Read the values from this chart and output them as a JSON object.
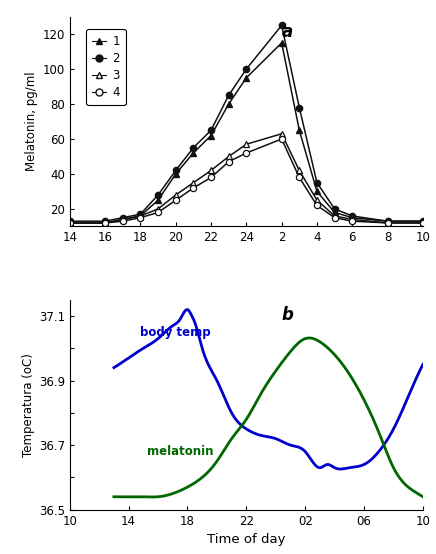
{
  "panel_a": {
    "title": "a",
    "ylabel": "Melatonin, pg/ml",
    "ylim": [
      10,
      130
    ],
    "yticks": [
      20,
      40,
      60,
      80,
      100,
      120
    ],
    "xtick_vals": [
      14,
      16,
      18,
      20,
      22,
      24,
      26,
      28,
      30,
      32,
      34
    ],
    "xticklabels": [
      "14",
      "16",
      "18",
      "20",
      "22",
      "24",
      "2",
      "4",
      "6",
      "8",
      "10"
    ],
    "series": {
      "s1": {
        "label": "1",
        "marker": "^",
        "filled": true,
        "color": "#111111",
        "x": [
          14,
          16,
          17,
          18,
          19,
          20,
          21,
          22,
          23,
          24,
          26,
          27,
          28,
          29,
          30,
          32,
          34
        ],
        "y": [
          12,
          12,
          14,
          16,
          25,
          40,
          52,
          62,
          80,
          95,
          115,
          65,
          30,
          18,
          15,
          13,
          13
        ]
      },
      "s2": {
        "label": "2",
        "marker": "o",
        "filled": true,
        "color": "#111111",
        "x": [
          14,
          16,
          17,
          18,
          19,
          20,
          21,
          22,
          23,
          24,
          26,
          27,
          28,
          29,
          30,
          32,
          34
        ],
        "y": [
          13,
          13,
          15,
          17,
          28,
          42,
          55,
          65,
          85,
          100,
          125,
          78,
          35,
          20,
          16,
          13,
          13
        ]
      },
      "s3": {
        "label": "3",
        "marker": "^",
        "filled": false,
        "color": "#111111",
        "x": [
          14,
          16,
          17,
          18,
          19,
          20,
          21,
          22,
          23,
          24,
          26,
          27,
          28,
          29,
          30,
          32,
          34
        ],
        "y": [
          12,
          12,
          14,
          16,
          20,
          28,
          35,
          42,
          50,
          57,
          63,
          42,
          25,
          16,
          14,
          12,
          12
        ]
      },
      "s4": {
        "label": "4",
        "marker": "o",
        "filled": false,
        "color": "#111111",
        "x": [
          14,
          16,
          17,
          18,
          19,
          20,
          21,
          22,
          23,
          24,
          26,
          27,
          28,
          29,
          30,
          32,
          34
        ],
        "y": [
          12,
          12,
          13,
          15,
          18,
          25,
          32,
          38,
          47,
          52,
          60,
          38,
          22,
          15,
          13,
          12,
          12
        ]
      }
    }
  },
  "panel_b": {
    "title": "b",
    "ylabel": "Temperatura (oC)",
    "xlabel": "Time of day",
    "ylim": [
      36.5,
      37.15
    ],
    "yticks": [
      36.5,
      36.6,
      36.7,
      36.8,
      36.9,
      37.0,
      37.1
    ],
    "yticklabels": [
      "36.5",
      "",
      "36.7",
      "",
      "36.9",
      "",
      "37.1"
    ],
    "xtick_vals": [
      10,
      14,
      18,
      22,
      26,
      30,
      34
    ],
    "xticklabels": [
      "10",
      "14",
      "18",
      "22",
      "02",
      "06",
      "10"
    ],
    "body_temp": {
      "label": "body temp",
      "color": "#0000CC",
      "x": [
        13,
        14,
        15,
        16,
        17,
        17.5,
        18,
        18.3,
        18.5,
        19,
        20,
        21,
        22,
        23,
        24,
        25,
        26,
        27,
        27.5,
        28,
        29,
        30,
        31,
        32,
        33,
        34
      ],
      "y": [
        36.94,
        36.97,
        37.0,
        37.03,
        37.07,
        37.09,
        37.12,
        37.1,
        37.08,
        37.0,
        36.9,
        36.8,
        36.75,
        36.73,
        36.72,
        36.7,
        36.68,
        36.63,
        36.64,
        36.63,
        36.63,
        36.64,
        36.68,
        36.75,
        36.85,
        36.95
      ]
    },
    "melatonin": {
      "label": "melatonin",
      "color": "#006600",
      "x": [
        13,
        14,
        15,
        16,
        17,
        18,
        19,
        20,
        21,
        22,
        23,
        24,
        25,
        26,
        27,
        28,
        29,
        30,
        31,
        32,
        33,
        34
      ],
      "y": [
        36.54,
        36.54,
        36.54,
        36.54,
        36.55,
        36.57,
        36.6,
        36.65,
        36.72,
        36.78,
        36.86,
        36.93,
        36.99,
        37.03,
        37.02,
        36.98,
        36.92,
        36.84,
        36.74,
        36.63,
        36.57,
        36.54
      ]
    }
  }
}
